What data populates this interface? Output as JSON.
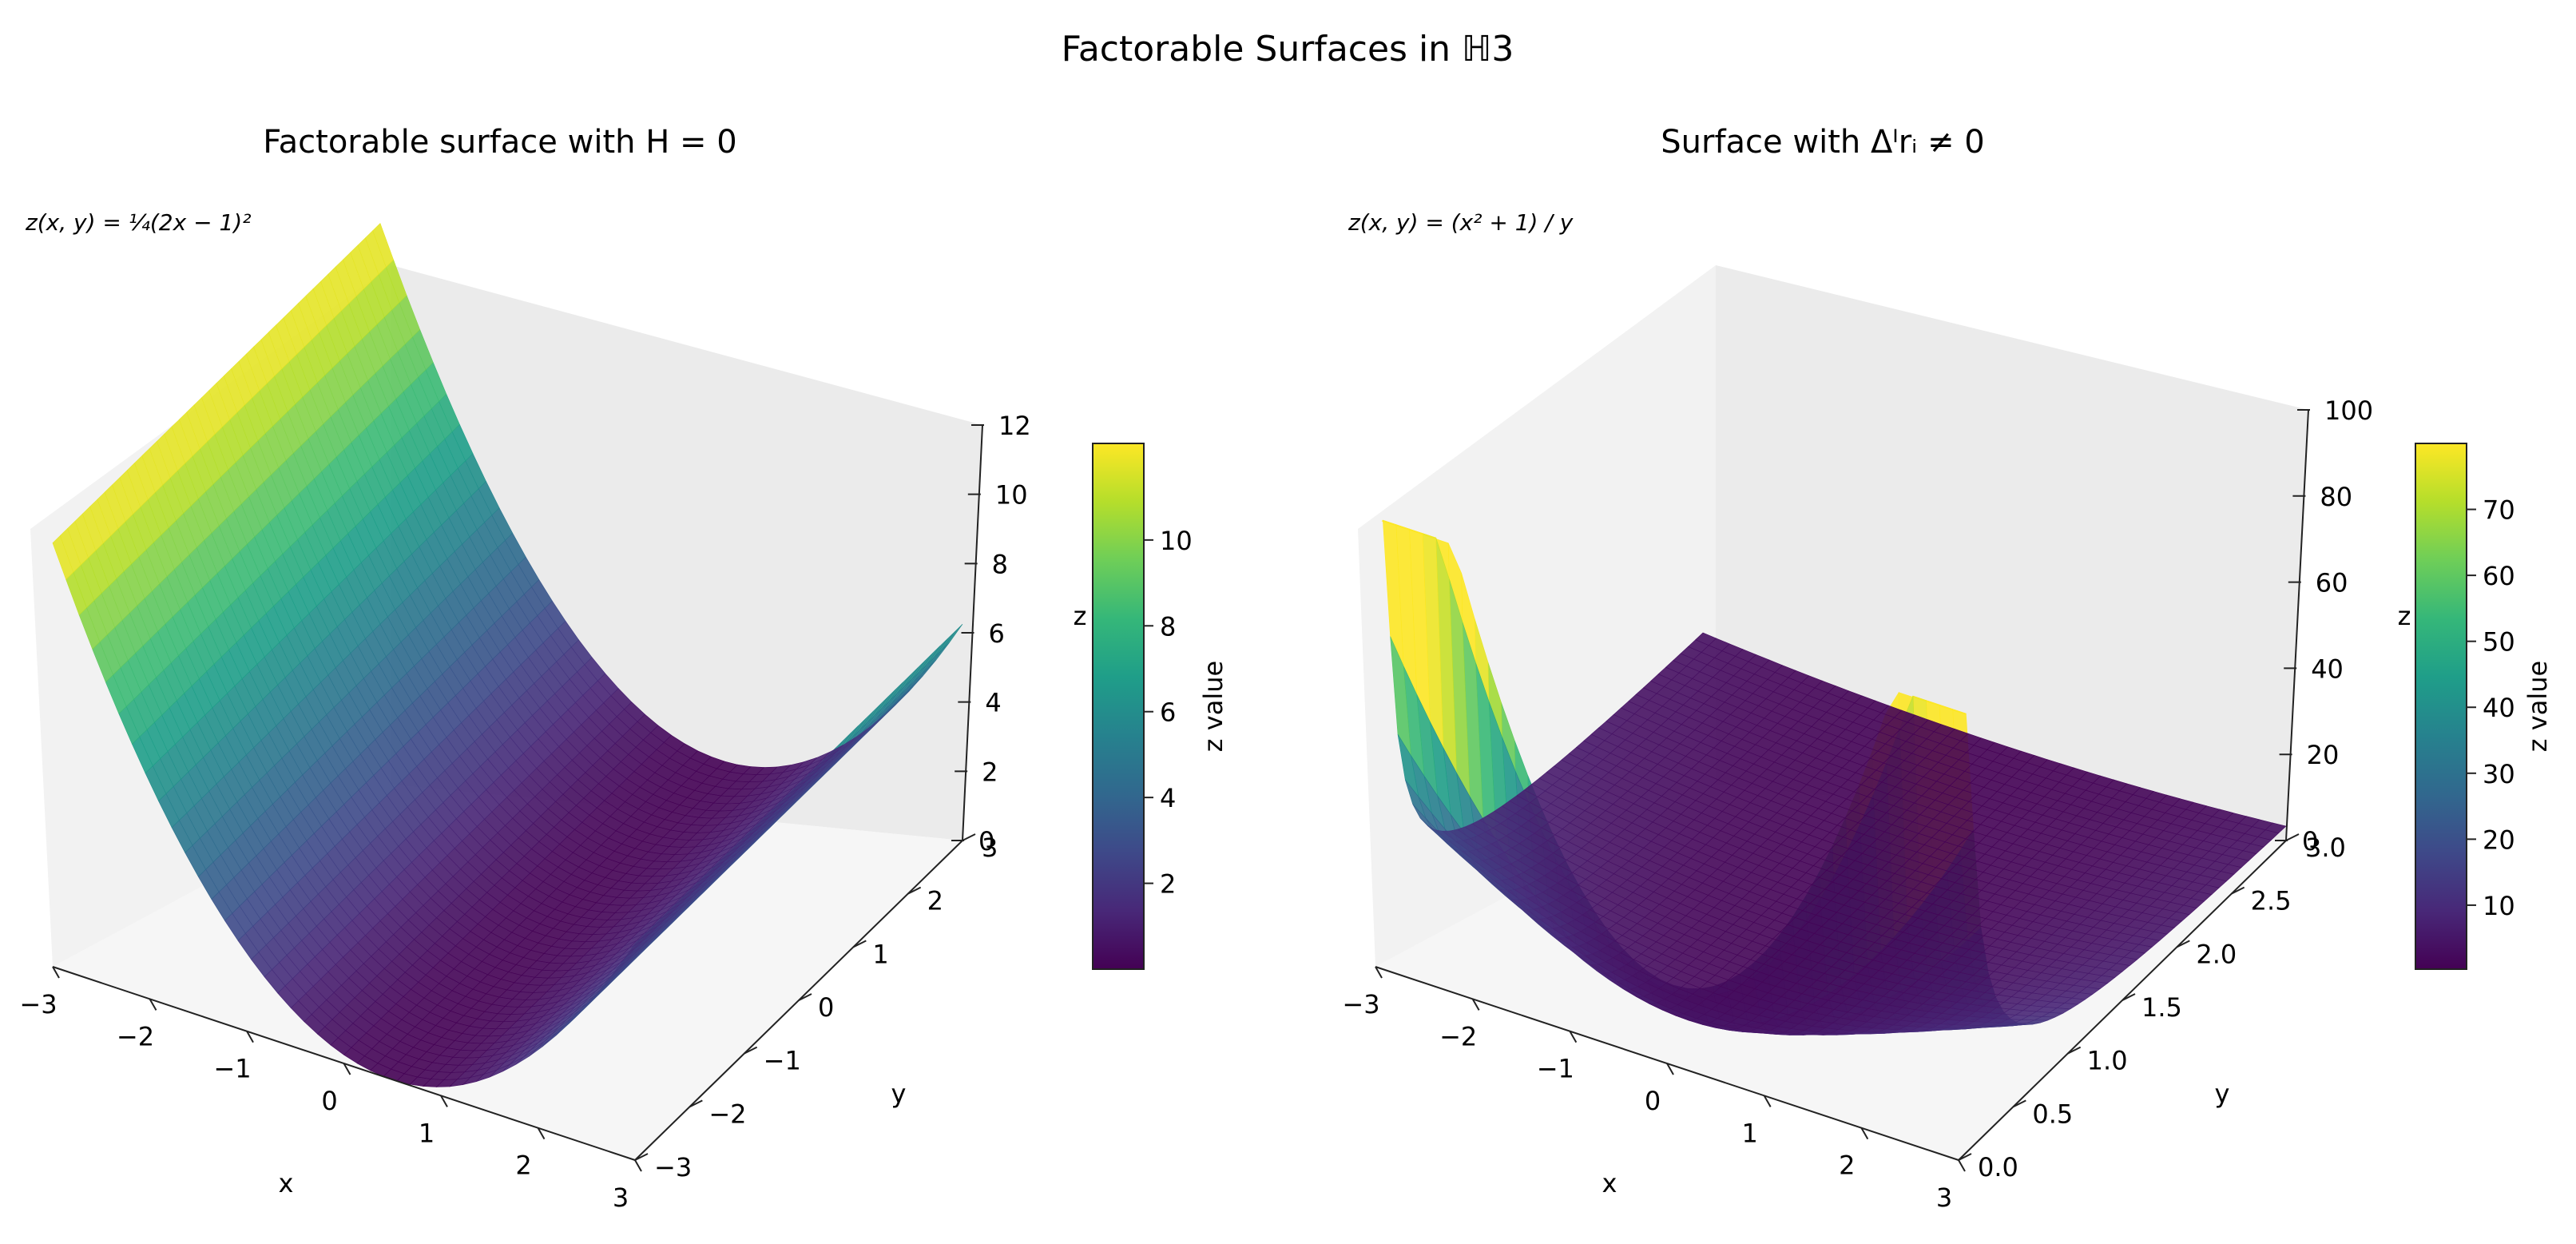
{
  "suptitle": "Factorable Surfaces in ℍ3",
  "colormap": [
    "#440154",
    "#482878",
    "#3e4989",
    "#31688e",
    "#26828e",
    "#1f9e89",
    "#35b779",
    "#6ece58",
    "#b5de2b",
    "#fde725"
  ],
  "chart_data": [
    {
      "type": "surface",
      "title": "Factorable surface with H = 0",
      "formula": "z(x, y) = ¼(2x − 1)²",
      "xlabel": "x",
      "ylabel": "y",
      "zlabel": "z",
      "xlim": [
        -3,
        3
      ],
      "ylim": [
        -3,
        3
      ],
      "zlim": [
        0,
        12
      ],
      "xticks": [
        "−3",
        "−2",
        "−1",
        "0",
        "1",
        "2",
        "3"
      ],
      "yticks": [
        "−3",
        "−2",
        "−1",
        "0",
        "1",
        "2",
        "3"
      ],
      "zticks": [
        "0",
        "2",
        "4",
        "6",
        "8",
        "10",
        "12"
      ],
      "colorbar": {
        "label": "z value",
        "range": [
          0.0,
          12.25
        ],
        "ticks": [
          "2",
          "4",
          "6",
          "8",
          "10"
        ]
      }
    },
    {
      "type": "surface",
      "title": "Surface with Δᴵrᵢ ≠ 0",
      "formula": "z(x, y) = (x² + 1) / y",
      "xlabel": "x",
      "ylabel": "y",
      "zlabel": "z",
      "xlim": [
        -3,
        3
      ],
      "ylim": [
        0.0,
        3.0
      ],
      "zlim": [
        0,
        100
      ],
      "xticks": [
        "−3",
        "−2",
        "−1",
        "0",
        "1",
        "2",
        "3"
      ],
      "yticks": [
        "0.0",
        "0.5",
        "1.0",
        "1.5",
        "2.0",
        "2.5",
        "3.0"
      ],
      "zticks": [
        "0",
        "20",
        "40",
        "60",
        "80",
        "100"
      ],
      "colorbar": {
        "label": "z value",
        "range": [
          0.3,
          80
        ],
        "ticks": [
          "10",
          "20",
          "30",
          "40",
          "50",
          "60",
          "70"
        ]
      }
    }
  ]
}
